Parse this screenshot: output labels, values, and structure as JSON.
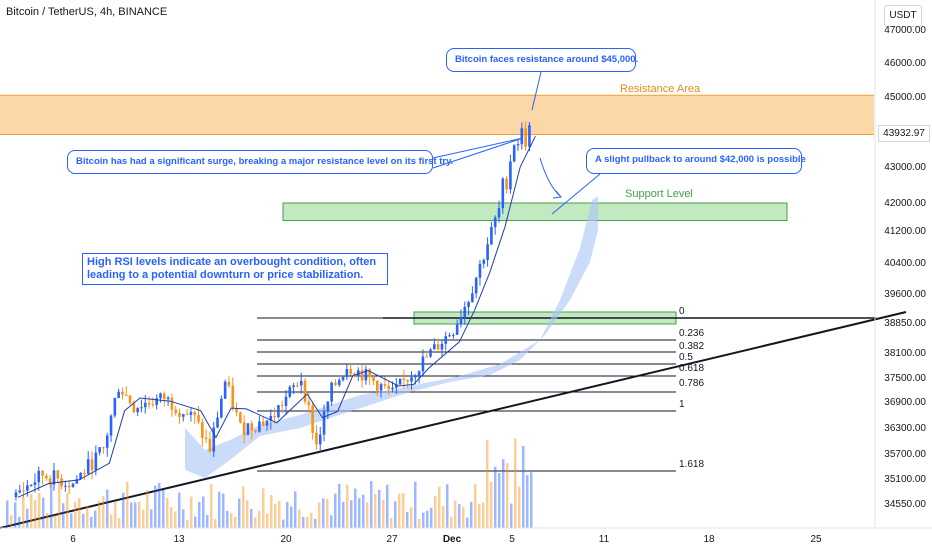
{
  "header": {
    "title": "Bitcoin / TetherUS, 4h, BINANCE",
    "currency": "USDT"
  },
  "price_axis": {
    "ticks": [
      "47000.00",
      "46000.00",
      "45000.00",
      "43000.00",
      "42000.00",
      "41200.00",
      "40400.00",
      "39600.00",
      "38850.00",
      "38100.00",
      "37500.00",
      "36900.00",
      "36300.00",
      "35700.00",
      "35100.00",
      "34550.00"
    ],
    "last_price": "43932.97"
  },
  "time_axis": {
    "ticks": [
      "6",
      "13",
      "20",
      "27",
      "Dec",
      "5",
      "11",
      "18",
      "25"
    ]
  },
  "annotations": {
    "resistance_callout": "Bitcoin faces resistance around $45,000.",
    "resistance_label": "Resistance Area",
    "surge_callout": "Bitcoin has had a significant surge, breaking a major resistance level on its first try.",
    "pullback_callout": "A slight pullback to around $42,000 is possible",
    "support_label": "Support Level",
    "rsi_note": "High RSI levels indicate an overbought condition, often leading to a potential downturn or price stabilization."
  },
  "fib_levels": [
    "0",
    "0.236",
    "0.382",
    "0.5",
    "0.618",
    "0.786",
    "1",
    "1.618"
  ],
  "colors": {
    "resistance_fill": "#fbc98a",
    "resistance_line": "#f59f2a",
    "resistance_text": "#e68a1f",
    "support_fill": "#a8e0a8",
    "support_line": "#43a047",
    "support_text": "#43a047",
    "candle_up": "#2962ff",
    "candle_down": "#f7931a",
    "accent": "#2962ff",
    "cloud": "#a9c4f7"
  },
  "chart_data": {
    "type": "candlestick",
    "symbol": "BTCUSDT",
    "timeframe": "4h",
    "ylim": [
      34300,
      47400
    ],
    "approx_close_path": [
      {
        "x": "Nov 2",
        "y": 34700
      },
      {
        "x": "Nov 4",
        "y": 35200
      },
      {
        "x": "Nov 6",
        "y": 35000
      },
      {
        "x": "Nov 8",
        "y": 35800
      },
      {
        "x": "Nov 9",
        "y": 37300
      },
      {
        "x": "Nov 10",
        "y": 36800
      },
      {
        "x": "Nov 12",
        "y": 37000
      },
      {
        "x": "Nov 14",
        "y": 36500
      },
      {
        "x": "Nov 15",
        "y": 35800
      },
      {
        "x": "Nov 16",
        "y": 37400
      },
      {
        "x": "Nov 17",
        "y": 36300
      },
      {
        "x": "Nov 19",
        "y": 36500
      },
      {
        "x": "Nov 21",
        "y": 37500
      },
      {
        "x": "Nov 22",
        "y": 35900
      },
      {
        "x": "Nov 23",
        "y": 37200
      },
      {
        "x": "Nov 24",
        "y": 37800
      },
      {
        "x": "Nov 25",
        "y": 37600
      },
      {
        "x": "Nov 27",
        "y": 37100
      },
      {
        "x": "Nov 28",
        "y": 37500
      },
      {
        "x": "Nov 29",
        "y": 37900
      },
      {
        "x": "Dec 1",
        "y": 38700
      },
      {
        "x": "Dec 2",
        "y": 39500
      },
      {
        "x": "Dec 3",
        "y": 40600
      },
      {
        "x": "Dec 4",
        "y": 41800
      },
      {
        "x": "Dec 5",
        "y": 43800
      },
      {
        "x": "Dec 6",
        "y": 43932.97
      }
    ],
    "resistance_zone": [
      43930,
      45050
    ],
    "support_zone": [
      41500,
      42000
    ]
  }
}
